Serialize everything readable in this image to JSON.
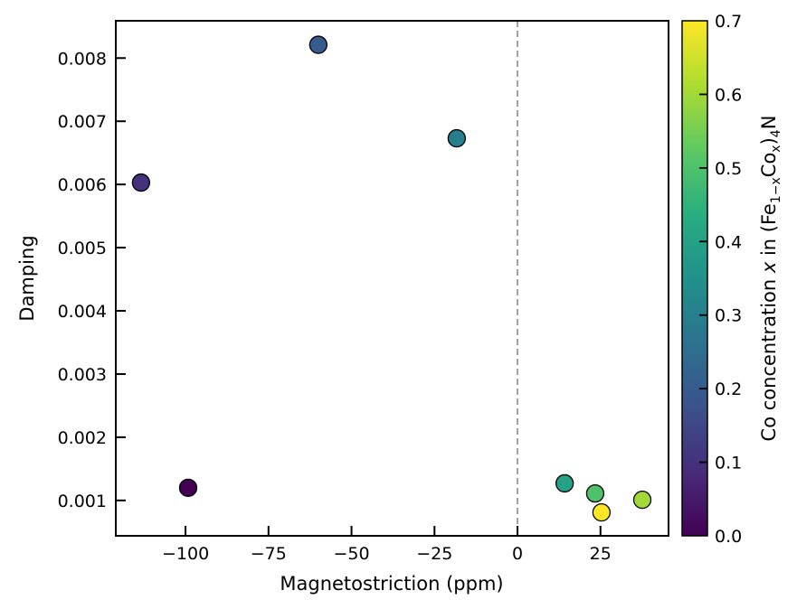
{
  "chart_data": {
    "type": "scatter",
    "title": "",
    "xlabel": "Magnetostriction (ppm)",
    "ylabel": "Damping",
    "xlim": [
      -121,
      45.5
    ],
    "ylim": [
      0.00044,
      0.00859
    ],
    "grid": false,
    "x_ticks": [
      -100,
      -75,
      -50,
      -25,
      0,
      25
    ],
    "x_tick_labels": [
      "−100",
      "−75",
      "−50",
      "−25",
      "0",
      "25"
    ],
    "y_ticks": [
      0.001,
      0.002,
      0.003,
      0.004,
      0.005,
      0.006,
      0.007,
      0.008
    ],
    "y_tick_labels": [
      "0.001",
      "0.002",
      "0.003",
      "0.004",
      "0.005",
      "0.006",
      "0.007",
      "0.008"
    ],
    "reference_line": {
      "x": 0,
      "style": "dashed",
      "color": "#a0a0a0"
    },
    "points": [
      {
        "x": -113.4,
        "y": 0.00603,
        "c": 0.1
      },
      {
        "x": -99.2,
        "y": 0.0012,
        "c": 0.0
      },
      {
        "x": -60.0,
        "y": 0.00821,
        "c": 0.2
      },
      {
        "x": -18.3,
        "y": 0.00673,
        "c": 0.3
      },
      {
        "x": 14.2,
        "y": 0.00127,
        "c": 0.4
      },
      {
        "x": 23.4,
        "y": 0.00111,
        "c": 0.5
      },
      {
        "x": 25.3,
        "y": 0.00081,
        "c": 0.7
      },
      {
        "x": 37.6,
        "y": 0.00101,
        "c": 0.6
      }
    ],
    "colorbar": {
      "colormap": "viridis",
      "range": [
        0.0,
        0.7
      ],
      "ticks": [
        0.0,
        0.1,
        0.2,
        0.3,
        0.4,
        0.5,
        0.6,
        0.7
      ],
      "tick_labels": [
        "0.0",
        "0.1",
        "0.2",
        "0.3",
        "0.4",
        "0.5",
        "0.6",
        "0.7"
      ],
      "label_parts": {
        "prefix": "Co concentration ",
        "var": "x",
        "middle": " in (Fe",
        "sub1": "1−x",
        "co": "Co",
        "sub2": "x",
        "close": ")",
        "sub3": "4",
        "suffix": "N"
      }
    }
  }
}
